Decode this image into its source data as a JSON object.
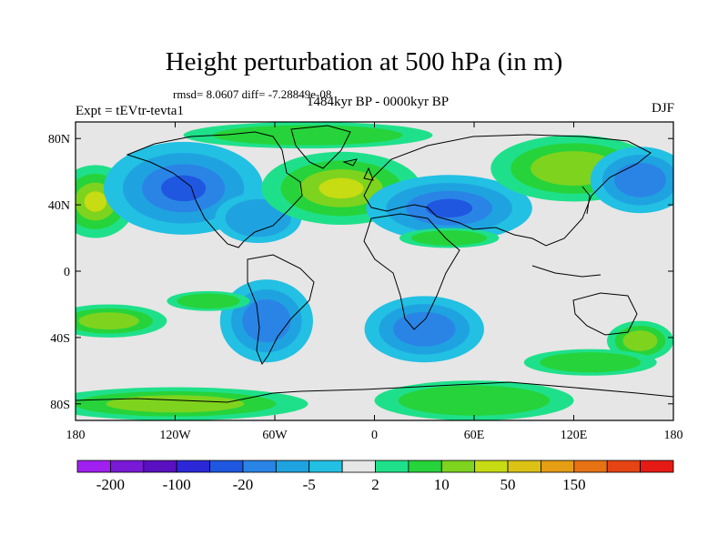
{
  "title": "Height perturbation at 500 hPa (in m)",
  "stats": "rmsd= 8.0607 diff= -7.28849e-08",
  "subtitle": "1484kyr BP - 0000kyr BP",
  "experiment": "Expt = tEVtr-tevta1",
  "season": "DJF",
  "map": {
    "lon_range": [
      -180,
      180
    ],
    "lat_range": [
      -90,
      90
    ],
    "x_ticks": [
      {
        "lon": -180,
        "label": "180"
      },
      {
        "lon": -120,
        "label": "120W"
      },
      {
        "lon": -60,
        "label": "60W"
      },
      {
        "lon": 0,
        "label": "0"
      },
      {
        "lon": 60,
        "label": "60E"
      },
      {
        "lon": 120,
        "label": "120E"
      },
      {
        "lon": 180,
        "label": "180"
      }
    ],
    "y_ticks": [
      {
        "lat": 80,
        "label": "80N"
      },
      {
        "lat": 40,
        "label": "40N"
      },
      {
        "lat": 0,
        "label": "0"
      },
      {
        "lat": -40,
        "label": "40S"
      },
      {
        "lat": -80,
        "label": "80S"
      }
    ],
    "background_color": "#e6e6e6",
    "anomaly_regions": [
      {
        "sign": "positive",
        "lon": -168,
        "lat": 42,
        "rx": 24,
        "ry": 22,
        "level": 3
      },
      {
        "sign": "negative",
        "lon": -115,
        "lat": 50,
        "rx": 48,
        "ry": 28,
        "level": 3
      },
      {
        "sign": "negative",
        "lon": -70,
        "lat": 32,
        "rx": 26,
        "ry": 15,
        "level": 1
      },
      {
        "sign": "positive",
        "lon": -20,
        "lat": 50,
        "rx": 48,
        "ry": 22,
        "level": 3
      },
      {
        "sign": "positive",
        "lon": -40,
        "lat": 82,
        "rx": 75,
        "ry": 8,
        "level": 1
      },
      {
        "sign": "negative",
        "lon": 45,
        "lat": 38,
        "rx": 50,
        "ry": 20,
        "level": 3
      },
      {
        "sign": "positive",
        "lon": 120,
        "lat": 62,
        "rx": 50,
        "ry": 20,
        "level": 2
      },
      {
        "sign": "negative",
        "lon": 160,
        "lat": 55,
        "rx": 30,
        "ry": 20,
        "level": 2
      },
      {
        "sign": "positive",
        "lon": 45,
        "lat": 20,
        "rx": 30,
        "ry": 6,
        "level": 1
      },
      {
        "sign": "negative",
        "lon": -65,
        "lat": -30,
        "rx": 28,
        "ry": 25,
        "level": 2
      },
      {
        "sign": "negative",
        "lon": 30,
        "lat": -35,
        "rx": 36,
        "ry": 20,
        "level": 2
      },
      {
        "sign": "positive",
        "lon": -160,
        "lat": -30,
        "rx": 35,
        "ry": 10,
        "level": 2
      },
      {
        "sign": "positive",
        "lon": -100,
        "lat": -18,
        "rx": 25,
        "ry": 6,
        "level": 1
      },
      {
        "sign": "positive",
        "lon": 160,
        "lat": -42,
        "rx": 20,
        "ry": 12,
        "level": 2
      },
      {
        "sign": "positive",
        "lon": -120,
        "lat": -80,
        "rx": 80,
        "ry": 10,
        "level": 2
      },
      {
        "sign": "positive",
        "lon": 60,
        "lat": -78,
        "rx": 60,
        "ry": 12,
        "level": 1
      },
      {
        "sign": "positive",
        "lon": 130,
        "lat": -55,
        "rx": 40,
        "ry": 8,
        "level": 1
      }
    ]
  },
  "colorbar": {
    "colors": [
      "#a020f0",
      "#7a1ad6",
      "#5a10c0",
      "#2c28d8",
      "#1f57e0",
      "#2a84e6",
      "#1fa3e0",
      "#22c0e3",
      "#e6e6e6",
      "#1fe08a",
      "#26d33a",
      "#7ed31e",
      "#c7dc12",
      "#dcc214",
      "#e69e14",
      "#e67214",
      "#e64414",
      "#e61a14"
    ],
    "labels": [
      {
        "index": 1,
        "label": "-200"
      },
      {
        "index": 3,
        "label": "-100"
      },
      {
        "index": 5,
        "label": "-20"
      },
      {
        "index": 7,
        "label": "-5"
      },
      {
        "index": 9,
        "label": "2"
      },
      {
        "index": 11,
        "label": "10"
      },
      {
        "index": 13,
        "label": "50"
      },
      {
        "index": 15,
        "label": "150"
      }
    ]
  }
}
